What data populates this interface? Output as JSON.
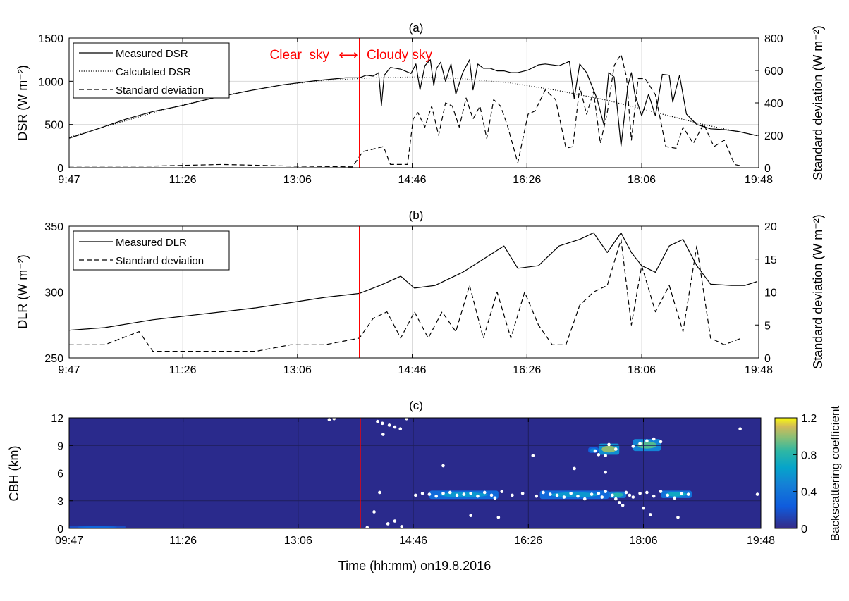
{
  "chart_data": [
    {
      "panel": "(a)",
      "type": "line",
      "ylabel": "DSR (W m⁻²)",
      "y2label": "Standard deviation (W m⁻²)",
      "ylim": [
        0,
        1500
      ],
      "y2lim": [
        0,
        800
      ],
      "yticks": [
        "0",
        "500",
        "1000",
        "1500"
      ],
      "y2ticks": [
        "0",
        "200",
        "400",
        "600",
        "800"
      ],
      "xticks": [
        "9:47",
        "11:26",
        "13:06",
        "14:46",
        "16:26",
        "18:06",
        "19:48"
      ],
      "grid": true,
      "legend_position": "top-left",
      "annotation": {
        "left": "Clear  sky",
        "arrow": "⟷",
        "right": "Cloudy sky",
        "color": "#ff0000"
      },
      "divider_x": 14.0,
      "series": [
        {
          "name": "Measured DSR",
          "style": "solid",
          "axis": "left",
          "x": [
            9.78,
            10.2,
            10.6,
            11.0,
            11.43,
            11.9,
            12.4,
            12.9,
            13.4,
            13.8,
            14.0,
            14.1,
            14.2,
            14.28,
            14.32,
            14.36,
            14.45,
            14.6,
            14.75,
            14.82,
            14.88,
            14.95,
            15.03,
            15.08,
            15.12,
            15.18,
            15.25,
            15.33,
            15.4,
            15.5,
            15.6,
            15.65,
            15.72,
            15.8,
            15.9,
            16.0,
            16.1,
            16.2,
            16.3,
            16.45,
            16.6,
            16.7,
            16.9,
            17.05,
            17.12,
            17.2,
            17.3,
            17.45,
            17.55,
            17.62,
            17.7,
            17.8,
            17.9,
            17.95,
            18.0,
            18.1,
            18.2,
            18.3,
            18.4,
            18.5,
            18.55,
            18.65,
            18.75,
            18.9,
            19.1,
            19.3,
            19.5,
            19.78
          ],
          "y": [
            340,
            450,
            560,
            650,
            720,
            810,
            890,
            960,
            1010,
            1040,
            1040,
            1070,
            1060,
            1100,
            720,
            1070,
            1160,
            1140,
            1090,
            1200,
            900,
            1180,
            1250,
            950,
            1150,
            1220,
            1000,
            1200,
            850,
            1100,
            1250,
            900,
            1200,
            1150,
            1150,
            1120,
            1120,
            1100,
            1100,
            1130,
            1190,
            1200,
            1180,
            1230,
            800,
            1200,
            1100,
            800,
            500,
            1100,
            1050,
            250,
            950,
            1100,
            850,
            600,
            850,
            600,
            1080,
            1070,
            760,
            1070,
            620,
            500,
            450,
            440,
            420,
            370
          ]
        },
        {
          "name": "Calculated DSR",
          "style": "dotted",
          "axis": "left",
          "x": [
            9.78,
            10.5,
            11.2,
            12.0,
            12.8,
            13.5,
            14.2,
            14.8,
            15.5,
            16.2,
            16.9,
            17.6,
            18.3,
            19.0,
            19.78
          ],
          "y": [
            350,
            520,
            680,
            830,
            950,
            1010,
            1040,
            1050,
            1030,
            980,
            890,
            780,
            640,
            500,
            370
          ]
        },
        {
          "name": "Standard deviation",
          "style": "dashed",
          "axis": "right",
          "x": [
            9.78,
            11.0,
            12.0,
            13.0,
            13.9,
            14.05,
            14.15,
            14.35,
            14.45,
            14.55,
            14.7,
            14.78,
            14.85,
            14.95,
            15.05,
            15.15,
            15.25,
            15.35,
            15.45,
            15.55,
            15.65,
            15.75,
            15.85,
            15.95,
            16.05,
            16.15,
            16.3,
            16.45,
            16.55,
            16.7,
            16.85,
            17.0,
            17.1,
            17.2,
            17.3,
            17.4,
            17.5,
            17.6,
            17.7,
            17.8,
            17.88,
            17.95,
            18.05,
            18.15,
            18.3,
            18.45,
            18.6,
            18.7,
            18.85,
            19.0,
            19.15,
            19.3,
            19.45,
            19.55
          ],
          "y": [
            10,
            10,
            20,
            10,
            5,
            100,
            110,
            130,
            20,
            20,
            20,
            300,
            340,
            250,
            380,
            200,
            400,
            380,
            250,
            430,
            300,
            380,
            180,
            420,
            380,
            260,
            30,
            330,
            350,
            480,
            420,
            120,
            130,
            500,
            330,
            470,
            150,
            340,
            630,
            700,
            560,
            170,
            550,
            550,
            450,
            130,
            120,
            250,
            150,
            270,
            130,
            170,
            20,
            10
          ]
        }
      ]
    },
    {
      "panel": "(b)",
      "type": "line",
      "ylabel": "DLR (W m⁻²)",
      "y2label": "Standard deviation (W m⁻²)",
      "ylim": [
        250,
        350
      ],
      "y2lim": [
        0,
        20
      ],
      "yticks": [
        "250",
        "300",
        "350"
      ],
      "y2ticks": [
        "0",
        "5",
        "10",
        "15",
        "20"
      ],
      "xticks": [
        "9:47",
        "11:26",
        "13:06",
        "14:46",
        "16:26",
        "18:06",
        "19:48"
      ],
      "grid": true,
      "legend_position": "top-left",
      "divider_x": 14.0,
      "series": [
        {
          "name": "Measured DLR",
          "style": "solid",
          "axis": "left",
          "x": [
            9.78,
            10.3,
            11.0,
            11.5,
            12.0,
            12.5,
            13.0,
            13.5,
            14.0,
            14.3,
            14.6,
            14.8,
            15.1,
            15.5,
            15.8,
            16.1,
            16.3,
            16.6,
            16.9,
            17.2,
            17.4,
            17.6,
            17.8,
            17.95,
            18.1,
            18.3,
            18.5,
            18.7,
            18.9,
            19.1,
            19.4,
            19.6,
            19.78
          ],
          "y": [
            271,
            273,
            279,
            282,
            285,
            288,
            292,
            296,
            299,
            305,
            312,
            303,
            305,
            315,
            325,
            335,
            318,
            320,
            335,
            340,
            345,
            330,
            345,
            330,
            320,
            315,
            335,
            340,
            320,
            306,
            305,
            305,
            308
          ]
        },
        {
          "name": "Standard deviation",
          "style": "dashed",
          "axis": "right",
          "x": [
            9.78,
            10.3,
            10.8,
            11.0,
            11.2,
            11.5,
            12.0,
            12.5,
            13.0,
            13.5,
            14.0,
            14.2,
            14.4,
            14.6,
            14.8,
            15.0,
            15.2,
            15.4,
            15.6,
            15.8,
            16.0,
            16.2,
            16.4,
            16.6,
            16.8,
            17.0,
            17.2,
            17.4,
            17.6,
            17.8,
            17.95,
            18.1,
            18.3,
            18.5,
            18.7,
            18.9,
            19.1,
            19.3,
            19.55
          ],
          "y": [
            2,
            2,
            4,
            1,
            1,
            1,
            1,
            1,
            2,
            2,
            3,
            6,
            7,
            3,
            7,
            3,
            7,
            4,
            11,
            3,
            10,
            3,
            10,
            5,
            2,
            2,
            8,
            10,
            11,
            18,
            5,
            14,
            7,
            11,
            4,
            17,
            3,
            2,
            3
          ]
        }
      ]
    },
    {
      "panel": "(c)",
      "type": "heatmap",
      "ylabel": "CBH (km)",
      "xlabel": "Time (hh:mm) on19.8.2016",
      "ylim": [
        0,
        12
      ],
      "yticks": [
        "0",
        "3",
        "6",
        "9",
        "12"
      ],
      "xticks": [
        "09:47",
        "11:26",
        "13:06",
        "14:46",
        "16:26",
        "18:06",
        "19:48"
      ],
      "colorbar": {
        "label": "Backscattering coefficient",
        "ticks": [
          "0",
          "0.4",
          "0.8",
          "1.2"
        ],
        "range": [
          0,
          1.2
        ]
      },
      "background_color": "#2a2a8c",
      "divider_x": 14.0,
      "cloud_patches": [
        {
          "x0": 15.0,
          "x1": 16.0,
          "y0": 3.2,
          "y1": 4.1,
          "level": 0.6
        },
        {
          "x0": 16.6,
          "x1": 17.6,
          "y0": 3.2,
          "y1": 4.1,
          "level": 0.6
        },
        {
          "x0": 17.6,
          "x1": 17.85,
          "y0": 3.3,
          "y1": 4.0,
          "level": 0.8
        },
        {
          "x0": 18.35,
          "x1": 18.8,
          "y0": 3.3,
          "y1": 4.1,
          "level": 0.7
        },
        {
          "x0": 17.3,
          "x1": 17.45,
          "y0": 8.2,
          "y1": 8.8,
          "level": 0.5
        },
        {
          "x0": 17.45,
          "x1": 17.75,
          "y0": 8.0,
          "y1": 9.2,
          "level": 1.0
        },
        {
          "x0": 17.95,
          "x1": 18.35,
          "y0": 8.4,
          "y1": 9.7,
          "level": 0.9
        },
        {
          "x0": 9.78,
          "x1": 10.6,
          "y0": 0.0,
          "y1": 0.3,
          "level": 0.3
        }
      ],
      "cbh_points": {
        "x": [
          13.55,
          13.62,
          14.25,
          14.32,
          14.42,
          14.5,
          14.58,
          14.67,
          14.33,
          14.28,
          14.8,
          14.9,
          15.0,
          15.1,
          15.2,
          15.3,
          15.4,
          15.5,
          15.6,
          15.7,
          15.8,
          15.9,
          15.95,
          16.05,
          16.2,
          16.35,
          16.55,
          16.65,
          16.75,
          16.85,
          16.95,
          17.05,
          17.15,
          17.25,
          17.35,
          17.45,
          17.5,
          17.55,
          17.65,
          17.7,
          17.75,
          17.8,
          17.85,
          17.9,
          17.95,
          18.05,
          18.15,
          18.25,
          18.35,
          18.45,
          18.55,
          18.65,
          18.75,
          17.4,
          17.45,
          17.6,
          17.7,
          17.55,
          17.95,
          18.05,
          18.15,
          18.25,
          18.35,
          15.2,
          15.6,
          16.0,
          16.5,
          17.1,
          17.55,
          18.1,
          18.2,
          18.6,
          19.5,
          19.75,
          14.2,
          14.5,
          14.6,
          14.1,
          14.4
        ],
        "y": [
          11.8,
          11.9,
          11.6,
          11.4,
          11.2,
          11.0,
          10.8,
          11.9,
          10.2,
          3.9,
          3.6,
          3.8,
          3.7,
          3.5,
          3.8,
          3.9,
          3.6,
          3.7,
          3.8,
          3.5,
          3.9,
          3.6,
          3.3,
          4.0,
          3.6,
          3.8,
          3.5,
          3.9,
          3.7,
          3.6,
          3.4,
          3.8,
          3.5,
          3.2,
          3.7,
          3.8,
          3.4,
          4.0,
          3.6,
          3.2,
          2.8,
          2.5,
          3.9,
          3.6,
          3.4,
          3.8,
          3.9,
          3.5,
          4.0,
          3.6,
          3.3,
          3.8,
          3.7,
          8.4,
          8.0,
          9.1,
          8.6,
          7.9,
          8.9,
          9.2,
          9.5,
          9.7,
          9.4,
          6.8,
          1.4,
          1.2,
          7.9,
          6.5,
          6.1,
          2.2,
          1.5,
          1.2,
          10.8,
          3.7,
          1.8,
          0.8,
          0.2,
          0.1,
          0.5
        ]
      }
    }
  ]
}
